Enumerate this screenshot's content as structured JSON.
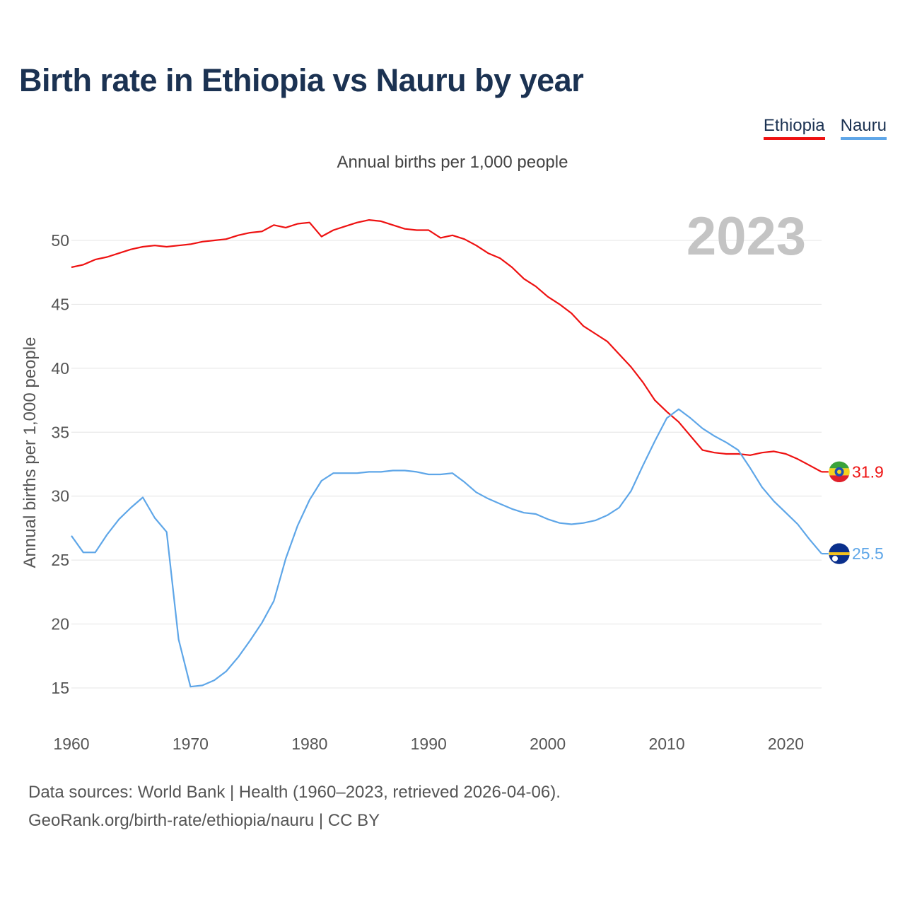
{
  "title": "Birth rate in Ethiopia vs Nauru by year",
  "legend": [
    {
      "label": "Ethiopia",
      "color": "#ee1111"
    },
    {
      "label": "Nauru",
      "color": "#5ea6e8"
    }
  ],
  "subtitle": "Annual births per 1,000 people",
  "year_display": "2023",
  "source": {
    "line1": "Data sources: World Bank | Health (1960–2023, retrieved 2026-04-06).",
    "line2": "GeoRank.org/birth-rate/ethiopia/nauru | CC BY"
  },
  "chart_data": {
    "type": "line",
    "title": "Birth rate in Ethiopia vs Nauru by year",
    "subtitle": "Annual births per 1,000 people",
    "xlabel": "",
    "ylabel": "Annual births per 1,000 people",
    "xlim": [
      1960,
      2023
    ],
    "ylim": [
      15,
      52
    ],
    "xticks": [
      1960,
      1970,
      1980,
      1990,
      2000,
      2010,
      2020
    ],
    "yticks": [
      15,
      20,
      25,
      30,
      35,
      40,
      45,
      50
    ],
    "grid": true,
    "legend_position": "top-right",
    "x": [
      1960,
      1961,
      1962,
      1963,
      1964,
      1965,
      1966,
      1967,
      1968,
      1969,
      1970,
      1971,
      1972,
      1973,
      1974,
      1975,
      1976,
      1977,
      1978,
      1979,
      1980,
      1981,
      1982,
      1983,
      1984,
      1985,
      1986,
      1987,
      1988,
      1989,
      1990,
      1991,
      1992,
      1993,
      1994,
      1995,
      1996,
      1997,
      1998,
      1999,
      2000,
      2001,
      2002,
      2003,
      2004,
      2005,
      2006,
      2007,
      2008,
      2009,
      2010,
      2011,
      2012,
      2013,
      2014,
      2015,
      2016,
      2017,
      2018,
      2019,
      2020,
      2021,
      2022,
      2023
    ],
    "series": [
      {
        "name": "Ethiopia",
        "color": "#ee1111",
        "end_label": "31.9",
        "values": [
          47.9,
          48.1,
          48.5,
          48.7,
          49.0,
          49.3,
          49.5,
          49.6,
          49.5,
          49.6,
          49.7,
          49.9,
          50.0,
          50.1,
          50.4,
          50.6,
          50.7,
          51.2,
          51.0,
          51.3,
          51.4,
          50.3,
          50.8,
          51.1,
          51.4,
          51.6,
          51.5,
          51.2,
          50.9,
          50.8,
          50.8,
          50.2,
          50.4,
          50.1,
          49.6,
          49.0,
          48.6,
          47.9,
          47.0,
          46.4,
          45.6,
          45.0,
          44.3,
          43.3,
          42.7,
          42.1,
          41.1,
          40.1,
          38.9,
          37.5,
          36.6,
          35.8,
          34.7,
          33.6,
          33.4,
          33.3,
          33.3,
          33.2,
          33.4,
          33.5,
          33.3,
          32.9,
          32.4,
          31.9
        ]
      },
      {
        "name": "Nauru",
        "color": "#5ea6e8",
        "end_label": "25.5",
        "values": [
          26.9,
          25.6,
          25.6,
          27.0,
          28.2,
          29.1,
          29.9,
          28.3,
          27.2,
          18.8,
          15.1,
          15.2,
          15.6,
          16.3,
          17.4,
          18.7,
          20.1,
          21.8,
          25.1,
          27.7,
          29.7,
          31.2,
          31.8,
          31.8,
          31.8,
          31.9,
          31.9,
          32.0,
          32.0,
          31.9,
          31.7,
          31.7,
          31.8,
          31.1,
          30.3,
          29.8,
          29.4,
          29.0,
          28.7,
          28.6,
          28.2,
          27.9,
          27.8,
          27.9,
          28.1,
          28.5,
          29.1,
          30.4,
          32.4,
          34.3,
          36.1,
          36.8,
          36.1,
          35.3,
          34.7,
          34.2,
          33.6,
          32.2,
          30.7,
          29.6,
          28.7,
          27.8,
          26.6,
          25.5
        ]
      }
    ]
  }
}
